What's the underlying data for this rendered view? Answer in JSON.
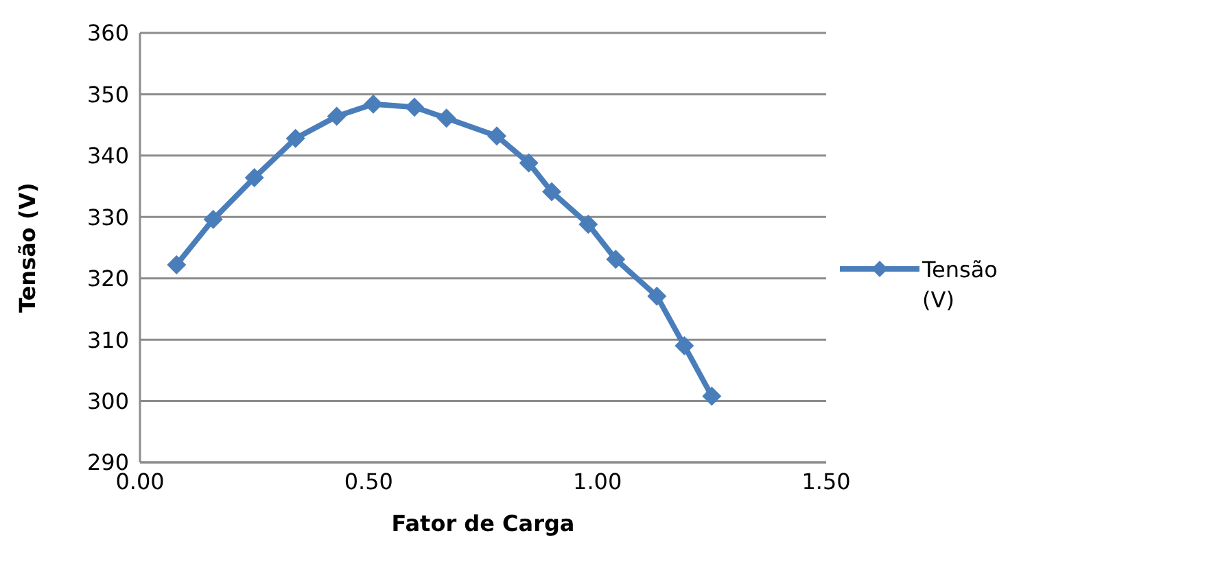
{
  "chart_data": {
    "type": "line",
    "xlabel": "Fator de Carga",
    "ylabel": "Tensão (V)",
    "x": [
      0.08,
      0.16,
      0.25,
      0.34,
      0.43,
      0.51,
      0.6,
      0.67,
      0.78,
      0.85,
      0.9,
      0.98,
      1.04,
      1.13,
      1.19,
      1.25
    ],
    "series": [
      {
        "name": "Tensão (V)",
        "color": "#4a7ebb",
        "values": [
          322.2,
          329.6,
          336.4,
          342.8,
          346.4,
          348.4,
          347.9,
          346.1,
          343.2,
          338.8,
          334.1,
          328.8,
          323.1,
          317.1,
          309.0,
          300.8
        ]
      }
    ],
    "xlim": [
      0,
      1.5
    ],
    "xticks": [
      {
        "value": 0,
        "label": "0.00"
      },
      {
        "value": 0.5,
        "label": "0.50"
      },
      {
        "value": 1,
        "label": "1.00"
      },
      {
        "value": 1.5,
        "label": "1.50"
      }
    ],
    "ylim": [
      290,
      360
    ],
    "yticks": [
      290,
      300,
      310,
      320,
      330,
      340,
      350,
      360
    ],
    "grid": "y",
    "legend": "right",
    "marker": "diamond",
    "line_style": "solid"
  }
}
